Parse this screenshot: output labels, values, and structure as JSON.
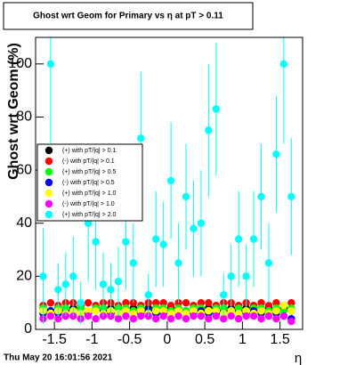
{
  "chart_data": {
    "type": "scatter",
    "title": "Ghost wrt Geom for Primary vs   η at pT > 0.11",
    "x_label": "η",
    "y_label": "Ghost wrt Geom (%)",
    "timestamp": "Thu May 20 16:01:56 2021",
    "xlim": [
      -1.75,
      1.8
    ],
    "ylim": [
      0,
      110
    ],
    "xticks": [
      -1.5,
      -1,
      -0.5,
      0,
      0.5,
      1,
      1.5
    ],
    "yticks": [
      0,
      20,
      40,
      60,
      80,
      100
    ],
    "x": [
      -1.65,
      -1.55,
      -1.45,
      -1.35,
      -1.25,
      -1.15,
      -1.05,
      -0.95,
      -0.85,
      -0.75,
      -0.65,
      -0.55,
      -0.45,
      -0.35,
      -0.25,
      -0.15,
      -0.05,
      0.05,
      0.15,
      0.25,
      0.35,
      0.45,
      0.55,
      0.65,
      0.75,
      0.85,
      0.95,
      1.05,
      1.15,
      1.25,
      1.35,
      1.45,
      1.55,
      1.65
    ],
    "series": [
      {
        "name": "(+) with pT/|q| > 0.1",
        "color": "#000000",
        "values": [
          8,
          7,
          8,
          7,
          8,
          8,
          7,
          8,
          7,
          8,
          8,
          7,
          8,
          7,
          8,
          8,
          7,
          8,
          8,
          7,
          8,
          7,
          8,
          8,
          7,
          8,
          7,
          8,
          8,
          7,
          8,
          7,
          8,
          7
        ]
      },
      {
        "name": "(-) with pT/|q| > 0.1",
        "color": "#ff0000",
        "values": [
          9,
          10,
          9,
          10,
          10,
          9,
          10,
          9,
          10,
          10,
          9,
          10,
          10,
          9,
          10,
          10,
          10,
          9,
          10,
          10,
          9,
          10,
          10,
          9,
          10,
          10,
          9,
          10,
          9,
          10,
          9,
          10,
          9,
          10
        ]
      },
      {
        "name": "(+) with pT/|q| > 0.5",
        "color": "#00ff00",
        "values": [
          8,
          7,
          8,
          8,
          7,
          8,
          7,
          8,
          8,
          7,
          8,
          8,
          7,
          8,
          7,
          8,
          8,
          7,
          8,
          7,
          8,
          8,
          7,
          8,
          8,
          7,
          8,
          7,
          8,
          8,
          7,
          8,
          7,
          8
        ]
      },
      {
        "name": "(-) with pT/|q| > 0.5",
        "color": "#0000ff",
        "values": [
          6,
          7,
          6,
          6,
          7,
          6,
          6,
          7,
          6,
          6,
          6,
          7,
          6,
          6,
          7,
          6,
          6,
          6,
          7,
          6,
          6,
          7,
          6,
          6,
          6,
          7,
          6,
          6,
          7,
          6,
          6,
          6,
          5,
          4
        ]
      },
      {
        "name": "(+) with pT/|q| > 1.0",
        "color": "#ffff00",
        "values": [
          7,
          6,
          7,
          6,
          7,
          6,
          7,
          7,
          6,
          7,
          6,
          7,
          6,
          7,
          6,
          7,
          7,
          6,
          7,
          6,
          7,
          6,
          7,
          7,
          6,
          7,
          6,
          7,
          6,
          7,
          6,
          7,
          9,
          7
        ]
      },
      {
        "name": "(-) with pT/|q| > 1.0",
        "color": "#ff00ff",
        "values": [
          4,
          5,
          4,
          5,
          5,
          4,
          5,
          4,
          5,
          5,
          4,
          5,
          4,
          5,
          5,
          4,
          5,
          4,
          5,
          4,
          5,
          5,
          4,
          5,
          4,
          5,
          4,
          5,
          5,
          4,
          5,
          4,
          5,
          3
        ]
      },
      {
        "name": "(+) with pT/|q| > 2.0",
        "color": "#00ffff",
        "values": [
          20,
          100,
          15,
          17,
          20,
          10,
          40,
          33,
          17,
          15,
          18,
          33,
          25,
          72,
          13,
          34,
          32,
          56,
          25,
          50,
          38,
          40,
          75,
          83,
          13,
          20,
          34,
          20,
          34,
          50,
          25,
          66,
          100,
          50
        ],
        "errors": [
          18,
          30,
          10,
          12,
          15,
          8,
          22,
          18,
          12,
          10,
          13,
          18,
          15,
          25,
          8,
          18,
          16,
          22,
          15,
          20,
          18,
          20,
          25,
          25,
          8,
          12,
          18,
          12,
          18,
          20,
          15,
          22,
          30,
          22
        ]
      }
    ],
    "legend": "upper left"
  }
}
